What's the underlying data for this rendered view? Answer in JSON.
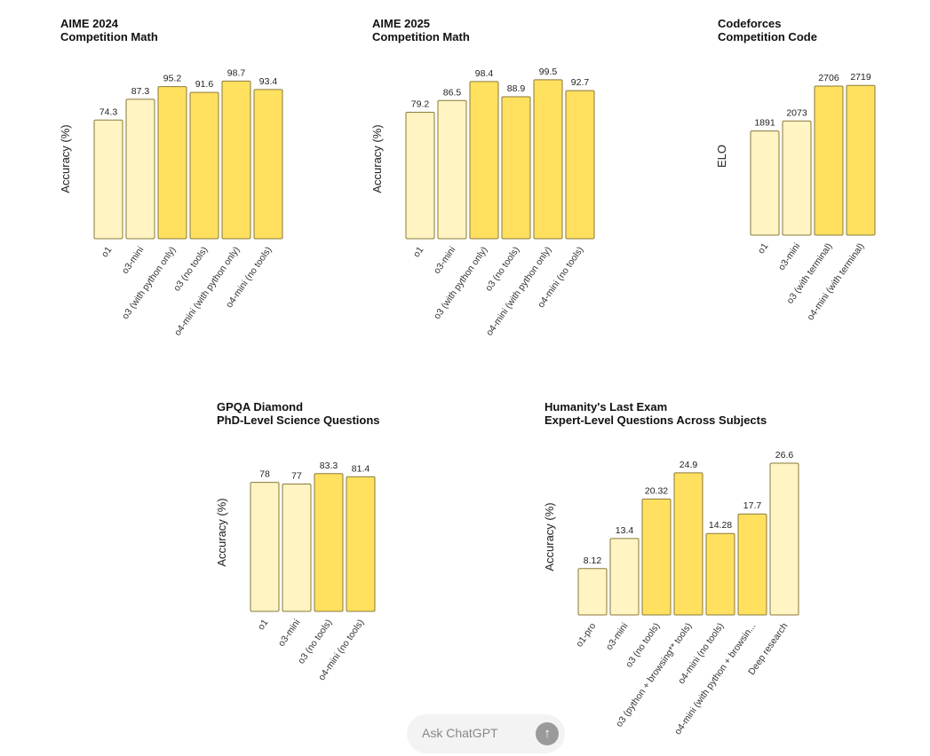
{
  "chart_data": [
    {
      "type": "bar",
      "title": "AIME 2024",
      "subtitle": "Competition Math",
      "ylabel": "Accuracy (%)",
      "ylim": [
        0,
        100
      ],
      "categories": [
        "o1",
        "o3-mini",
        "o3 (with python only)",
        "o3 (no tools)",
        "o4-mini (with python only)",
        "o4-mini (no tools)"
      ],
      "values": [
        74.3,
        87.3,
        95.2,
        91.6,
        98.7,
        93.4
      ],
      "value_labels": [
        "74.3",
        "87.3",
        "95.2",
        "91.6",
        "98.7",
        "93.4"
      ],
      "colors": [
        "#fff4c2",
        "#fff4c2",
        "#ffe05f",
        "#ffe05f",
        "#ffe05f",
        "#ffe05f"
      ],
      "grid": false
    },
    {
      "type": "bar",
      "title": "AIME 2025",
      "subtitle": "Competition Math",
      "ylabel": "Accuracy (%)",
      "ylim": [
        0,
        100
      ],
      "categories": [
        "o1",
        "o3-mini",
        "o3 (with python only)",
        "o3 (no tools)",
        "o4-mini (with python only)",
        "o4-mini (no tools)"
      ],
      "values": [
        79.2,
        86.5,
        98.4,
        88.9,
        99.5,
        92.7
      ],
      "value_labels": [
        "79.2",
        "86.5",
        "98.4",
        "88.9",
        "99.5",
        "92.7"
      ],
      "colors": [
        "#fff4c2",
        "#fff4c2",
        "#ffe05f",
        "#ffe05f",
        "#ffe05f",
        "#ffe05f"
      ],
      "grid": false
    },
    {
      "type": "bar",
      "title": "Codeforces",
      "subtitle": "Competition Code",
      "ylabel": "ELO",
      "ylim": [
        0,
        2900
      ],
      "categories": [
        "o1",
        "o3-mini",
        "o3 (with terminal)",
        "o4-mini (with terminal)"
      ],
      "values": [
        1891,
        2073,
        2706,
        2719
      ],
      "value_labels": [
        "1891",
        "2073",
        "2706",
        "2719"
      ],
      "colors": [
        "#fff4c2",
        "#fff4c2",
        "#ffe05f",
        "#ffe05f"
      ],
      "grid": false
    },
    {
      "type": "bar",
      "title": "GPQA Diamond",
      "subtitle": "PhD-Level Science Questions",
      "ylabel": "Accuracy (%)",
      "ylim": [
        0,
        88
      ],
      "categories": [
        "o1",
        "o3-mini",
        "o3 (no tools)",
        "o4-mini (no tools)"
      ],
      "values": [
        78,
        77,
        83.3,
        81.4
      ],
      "value_labels": [
        "78",
        "77",
        "83.3",
        "81.4"
      ],
      "colors": [
        "#fff4c2",
        "#fff4c2",
        "#ffe05f",
        "#ffe05f"
      ],
      "grid": false
    },
    {
      "type": "bar",
      "title": "Humanity's Last Exam",
      "subtitle": "Expert-Level Questions Across Subjects",
      "ylabel": "Accuracy (%)",
      "ylim": [
        0,
        28
      ],
      "categories": [
        "o1-pro",
        "o3-mini",
        "o3 (no tools)",
        "o3 (python + browsing** tools)",
        "o4-mini (no tools)",
        "o4-mini (with python + browsin...",
        "Deep research"
      ],
      "values": [
        8.12,
        13.4,
        20.32,
        24.9,
        14.28,
        17.7,
        26.6
      ],
      "value_labels": [
        "8.12",
        "13.4",
        "20.32",
        "24.9",
        "14.28",
        "17.7",
        "26.6"
      ],
      "colors": [
        "#fff4c2",
        "#fff4c2",
        "#ffe05f",
        "#ffe05f",
        "#ffe05f",
        "#ffe05f",
        "#fff4c2"
      ],
      "grid": false
    }
  ],
  "composer": {
    "placeholder": "Ask ChatGPT",
    "send_icon": "arrow-up-icon",
    "send_glyph": "↑"
  }
}
